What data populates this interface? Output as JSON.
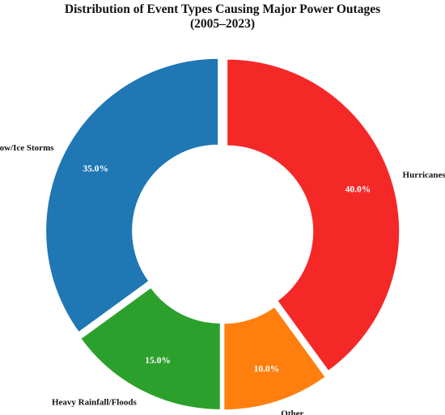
{
  "chart_data": {
    "type": "pie",
    "variant": "donut",
    "title": "Distribution of Event Types Causing Major Power Outages",
    "subtitle": "(2005–2023)",
    "start_angle_deg": 90,
    "direction": "counterclockwise",
    "exploded": true,
    "slices": [
      {
        "label": "Severe Snow/Ice Storms",
        "value": 35.0,
        "pct_label": "35.0%",
        "color": "#1f77b4"
      },
      {
        "label": "Heavy Rainfall/Floods",
        "value": 15.0,
        "pct_label": "15.0%",
        "color": "#2ca02c"
      },
      {
        "label": "Other",
        "value": 10.0,
        "pct_label": "10.0%",
        "color": "#ff7f0e"
      },
      {
        "label": "Hurricanes/Typhoons",
        "value": 40.0,
        "pct_label": "40.0%",
        "color": "#f52828"
      }
    ]
  }
}
